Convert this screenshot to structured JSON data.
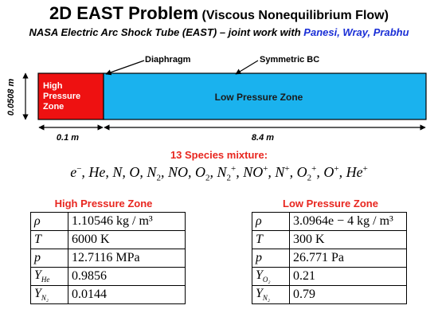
{
  "title": {
    "main": "2D EAST Problem",
    "paren": "(Viscous Nonequilibrium Flow)"
  },
  "subtitle": {
    "prefix": "NASA Electric Arc Shock Tube (EAST) – joint work with",
    "names": "Panesi, Wray, Prabhu"
  },
  "diagram": {
    "labels": {
      "diaphragm": "Diaphragm",
      "symmetric_bc": "Symmetric BC",
      "height": "0.0508 m",
      "hp_length": "0.1 m",
      "lp_length": "8.4 m",
      "hp_zone_line1": "High",
      "hp_zone_line2": "Pressure",
      "hp_zone_line3": "Zone",
      "lp_zone": "Low Pressure Zone"
    },
    "colors": {
      "high": "#ee1111",
      "low": "#1ab2ee",
      "outline": "#000000"
    }
  },
  "species": {
    "title": "13 Species mixture:",
    "items": [
      {
        "base": "e",
        "sup": "−",
        "sub": ""
      },
      {
        "base": "He",
        "sup": "",
        "sub": ""
      },
      {
        "base": "N",
        "sup": "",
        "sub": ""
      },
      {
        "base": "O",
        "sup": "",
        "sub": ""
      },
      {
        "base": "N",
        "sup": "",
        "sub": "2"
      },
      {
        "base": "NO",
        "sup": "",
        "sub": ""
      },
      {
        "base": "O",
        "sup": "",
        "sub": "2"
      },
      {
        "base": "N",
        "sup": "+",
        "sub": "2"
      },
      {
        "base": "NO",
        "sup": "+",
        "sub": ""
      },
      {
        "base": "N",
        "sup": "+",
        "sub": ""
      },
      {
        "base": "O",
        "sup": "+",
        "sub": "2"
      },
      {
        "base": "O",
        "sup": "+",
        "sub": ""
      },
      {
        "base": "He",
        "sup": "+",
        "sub": ""
      }
    ]
  },
  "high_pressure": {
    "title": "High Pressure Zone",
    "rows": [
      {
        "symbol": "ρ",
        "sub": "",
        "value": "1.10546 kg / m³"
      },
      {
        "symbol": "T",
        "sub": "",
        "value": "6000 K"
      },
      {
        "symbol": "p",
        "sub": "",
        "value": "12.7116 MPa"
      },
      {
        "symbol": "Y",
        "sub": "He",
        "value": "0.9856"
      },
      {
        "symbol": "Y",
        "sub": "N₂",
        "value": "0.0144"
      }
    ]
  },
  "low_pressure": {
    "title": "Low Pressure Zone",
    "rows": [
      {
        "symbol": "ρ",
        "sub": "",
        "value": "3.0964e − 4 kg / m³"
      },
      {
        "symbol": "T",
        "sub": "",
        "value": "300 K"
      },
      {
        "symbol": "p",
        "sub": "",
        "value": "26.771 Pa"
      },
      {
        "symbol": "Y",
        "sub": "O₂",
        "value": "0.21"
      },
      {
        "symbol": "Y",
        "sub": "N₂",
        "value": "0.79"
      }
    ]
  }
}
